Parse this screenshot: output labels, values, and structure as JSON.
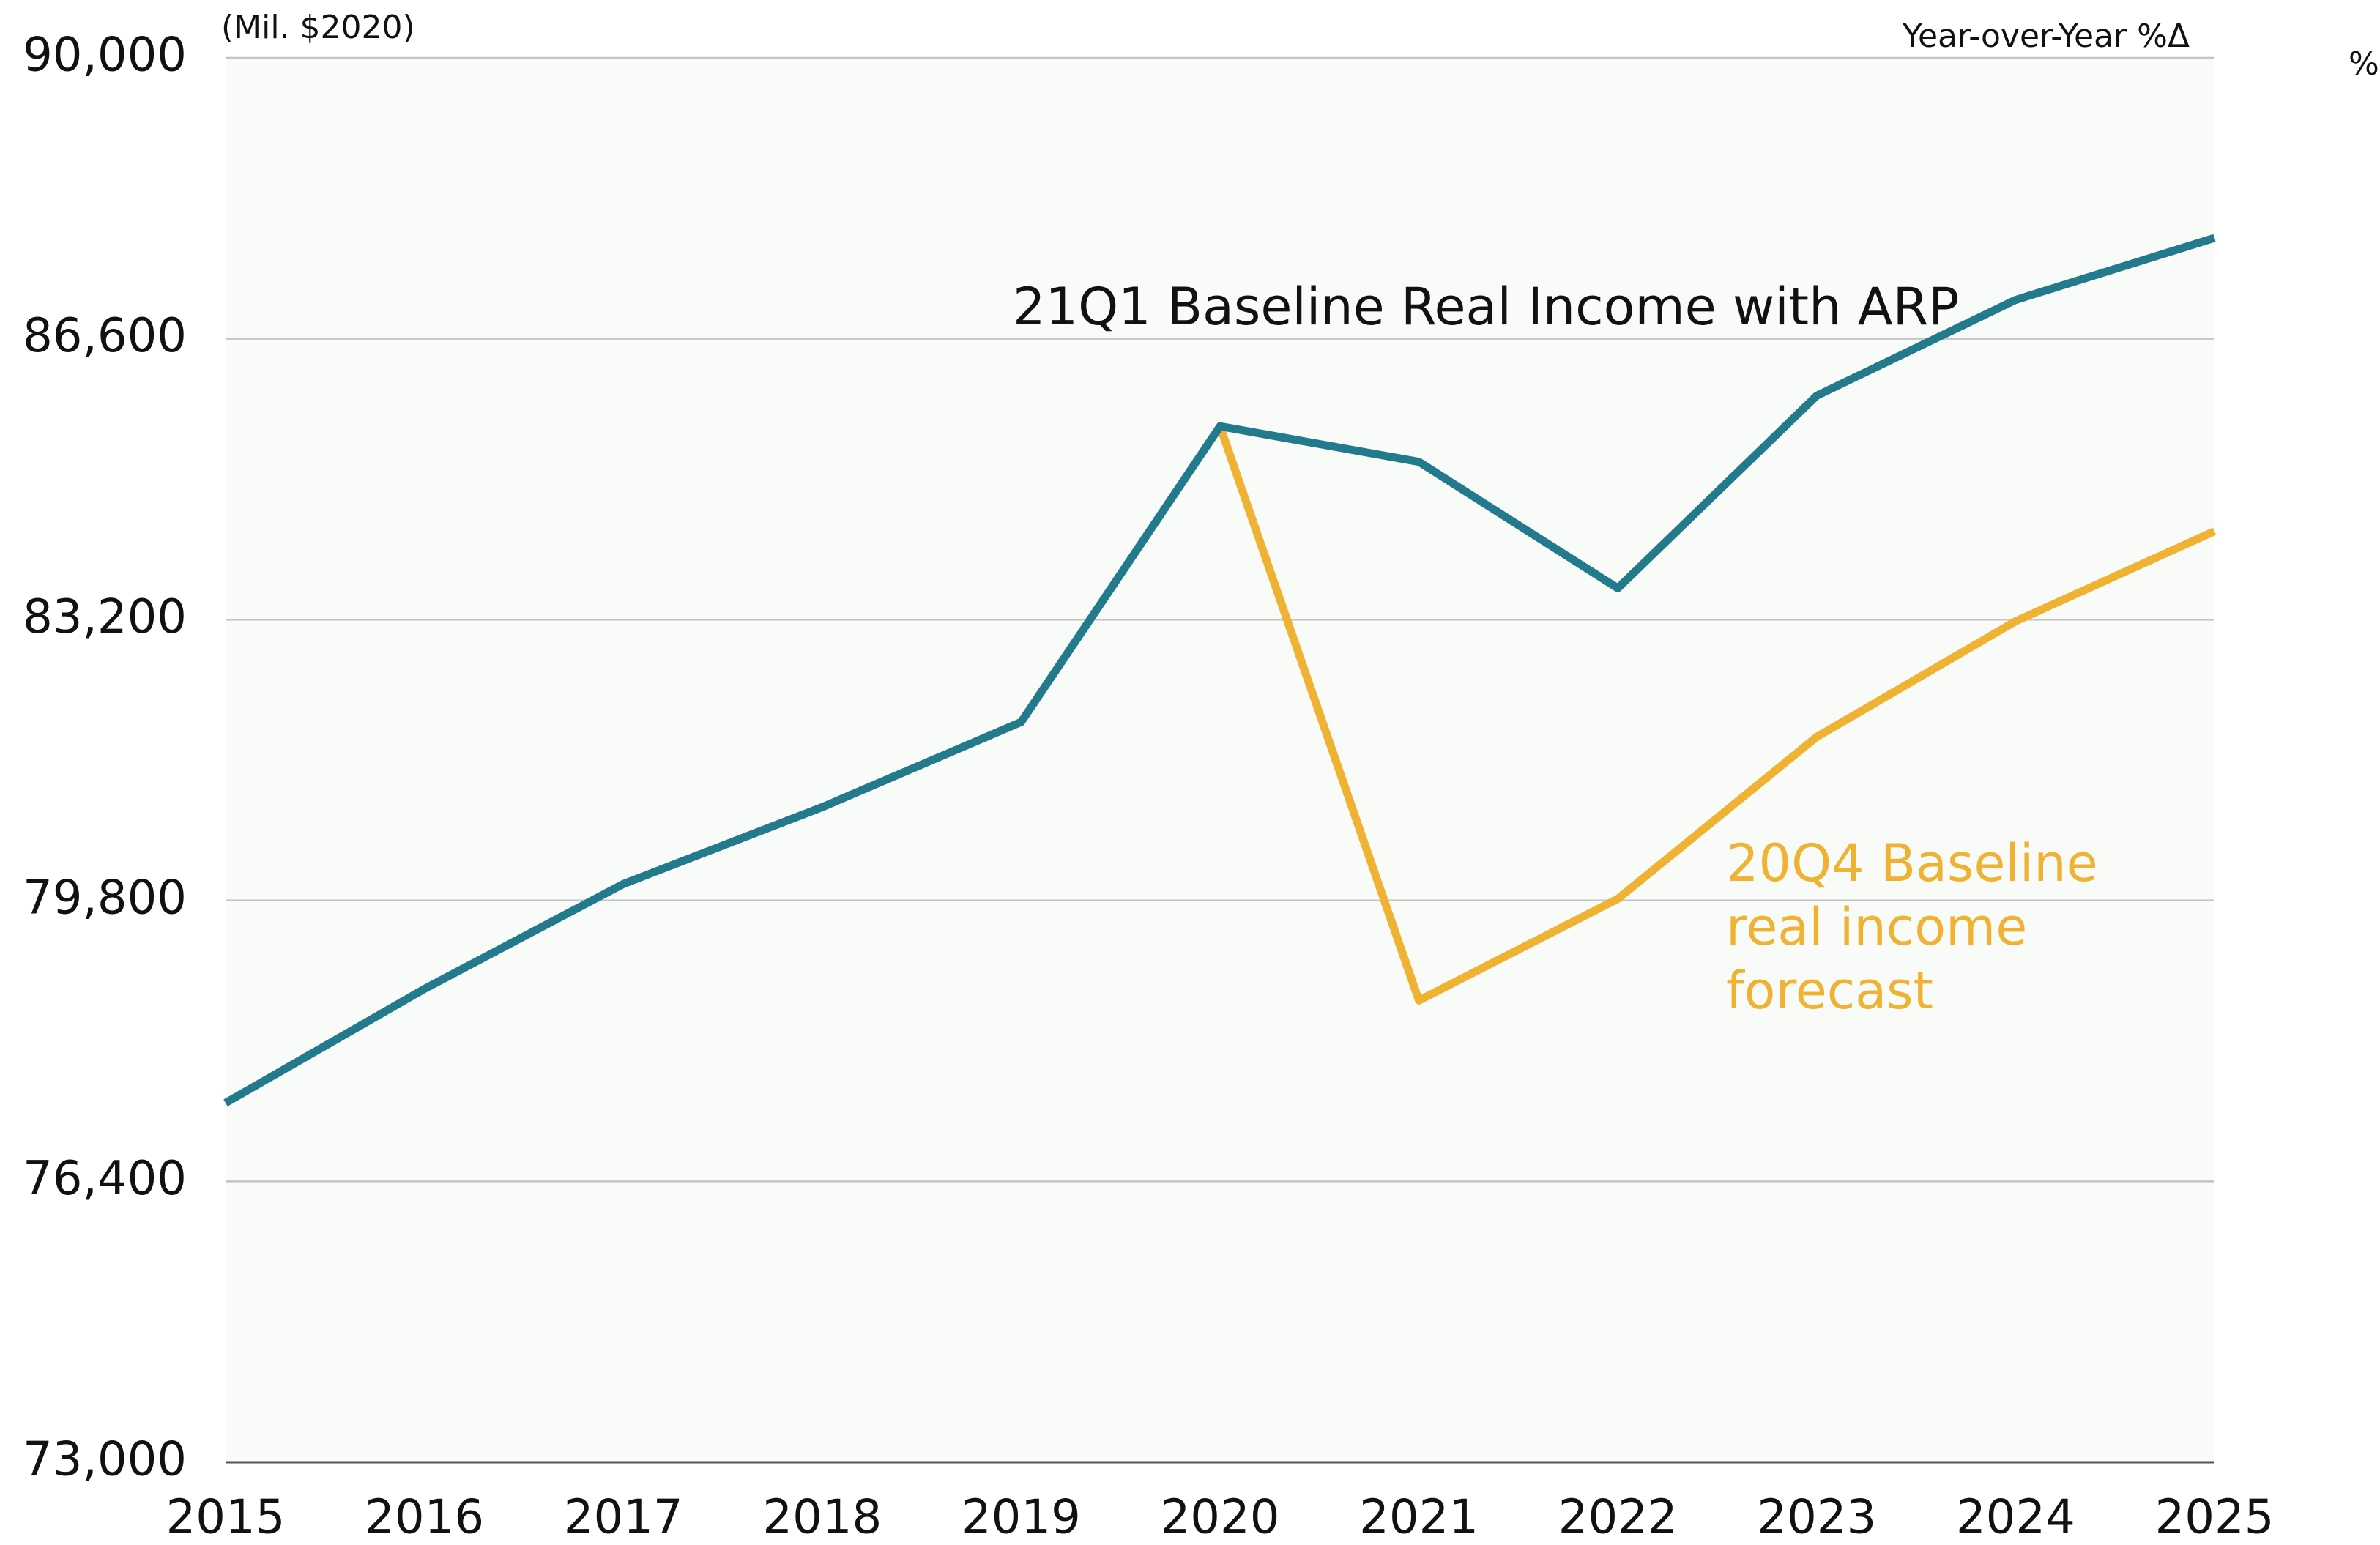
{
  "chart_data": {
    "type": "line",
    "unit_label": "(Mil. $2020)",
    "right_axis_label": "Year-over-Year %Δ",
    "right_axis_unit": "%",
    "x": [
      "2015",
      "2016",
      "2017",
      "2018",
      "2019",
      "2020",
      "2021",
      "2022",
      "2023",
      "2024",
      "2025"
    ],
    "series": [
      {
        "name": "21Q1 Baseline Real Income with ARP",
        "color": "#237a8c",
        "values": [
          77350,
          78730,
          80000,
          80930,
          81960,
          85540,
          85110,
          83580,
          85910,
          87070,
          87820
        ]
      },
      {
        "name": "20Q4 Baseline real income forecast",
        "color": "#f0b232",
        "values": [
          null,
          null,
          null,
          null,
          null,
          85540,
          78590,
          79820,
          81780,
          83180,
          84270
        ]
      }
    ],
    "ylim": [
      73000,
      90000
    ],
    "yticks": [
      {
        "value": 73000,
        "label": "73,000"
      },
      {
        "value": 76400,
        "label": "76,400"
      },
      {
        "value": 79800,
        "label": "79,800"
      },
      {
        "value": 83200,
        "label": "83,200"
      },
      {
        "value": 86600,
        "label": "86,600"
      },
      {
        "value": 90000,
        "label": "90,000"
      }
    ],
    "grid": true
  }
}
